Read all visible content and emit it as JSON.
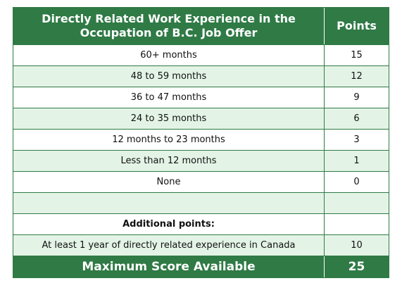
{
  "header": {
    "title_line1": "Directly Related Work Experience in the",
    "title_line2": "Occupation of B.C. Job Offer",
    "points_label": "Points"
  },
  "rows": [
    {
      "label": "60+ months",
      "points": "15"
    },
    {
      "label": "48 to 59 months",
      "points": "12"
    },
    {
      "label": "36 to 47 months",
      "points": "9"
    },
    {
      "label": "24 to 35 months",
      "points": "6"
    },
    {
      "label": "12 months to 23 months",
      "points": "3"
    },
    {
      "label": "Less than 12 months",
      "points": "1"
    },
    {
      "label": "None",
      "points": "0"
    },
    {
      "label": "",
      "points": ""
    },
    {
      "label": "Additional points:",
      "points": ""
    },
    {
      "label": "At least 1 year of directly related experience in Canada",
      "points": "10"
    }
  ],
  "footer": {
    "label": "Maximum Score Available",
    "points": "25"
  },
  "colors": {
    "header_bg": "#2f7a45",
    "alt_row_bg": "#e3f4e6",
    "header_text": "#ffffff"
  }
}
